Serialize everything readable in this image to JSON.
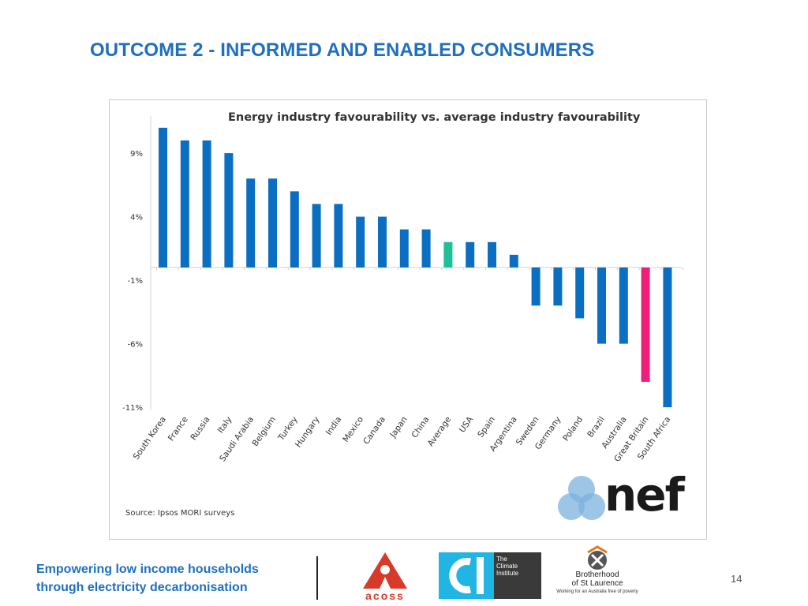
{
  "slide": {
    "title": "OUTCOME 2 - INFORMED AND ENABLED CONSUMERS",
    "page_number": "14",
    "footer_tagline": [
      "Empowering low income households",
      "through electricity decarbonisation"
    ]
  },
  "chart_data": {
    "type": "bar",
    "title": "Energy industry favourability vs. average industry favourability",
    "xlabel": "",
    "ylabel": "",
    "ylim": [
      -11,
      12
    ],
    "y_ticks": [
      9,
      4,
      -1,
      -6,
      -11
    ],
    "y_tick_labels": [
      "9%",
      "4%",
      "-1%",
      "-6%",
      "-11%"
    ],
    "grid": false,
    "categories": [
      "South Korea",
      "France",
      "Russia",
      "Italy",
      "Saudi Arabia",
      "Belgium",
      "Turkey",
      "Hungary",
      "India",
      "Mexico",
      "Canada",
      "Japan",
      "China",
      "Average",
      "USA",
      "Spain",
      "Argentina",
      "Sweden",
      "Germany",
      "Poland",
      "Brazil",
      "Australia",
      "Great Britain",
      "South Africa"
    ],
    "values": [
      11,
      10,
      10,
      9,
      7,
      7,
      6,
      5,
      5,
      4,
      4,
      3,
      3,
      2,
      2,
      2,
      1,
      -3,
      -3,
      -4,
      -6,
      -6,
      -9,
      -11
    ],
    "colors": {
      "default": "#0a6fc2",
      "Average": "#1fbf99",
      "Great Britain": "#ee1e79"
    },
    "source": "Source: Ipsos MORI surveys"
  },
  "logos": {
    "nef": "nef",
    "acoss": "acoss",
    "climate_institute": [
      "The",
      "Climate",
      "Institute"
    ],
    "bsl_name": [
      "Brotherhood",
      "of St Laurence"
    ],
    "bsl_tagline": "Working for an Australia free of poverty"
  }
}
